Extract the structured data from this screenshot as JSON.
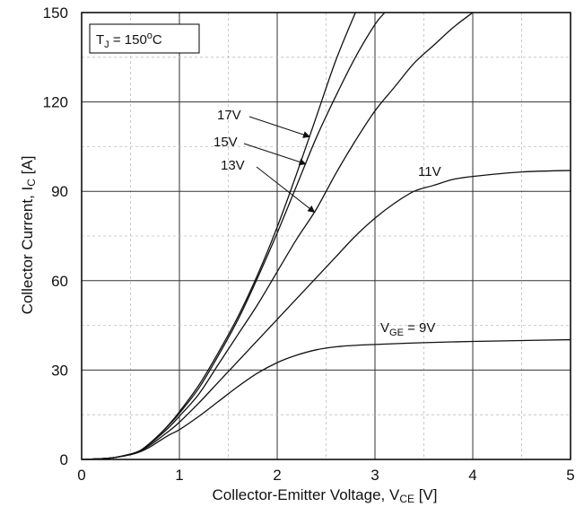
{
  "chart_data": {
    "type": "line",
    "title": "",
    "xlabel": "Collector-Emitter Voltage, V",
    "xlabel_sub": "CE",
    "xlabel_unit": " [V]",
    "ylabel": "Collector Current, I",
    "ylabel_sub": "C",
    "ylabel_unit": " [A]",
    "xlim": [
      0,
      5
    ],
    "ylim": [
      0,
      150
    ],
    "xticks": [
      0,
      1,
      2,
      3,
      4,
      5
    ],
    "yticks": [
      0,
      30,
      60,
      90,
      120,
      150
    ],
    "grid": true,
    "condition": {
      "base": "T",
      "sub": "J",
      "mid": " = 150",
      "sup": "o",
      "unit": "C"
    },
    "series": [
      {
        "name": "17V",
        "points": [
          [
            0,
            0
          ],
          [
            0.3,
            0.5
          ],
          [
            0.5,
            1.8
          ],
          [
            0.6,
            3
          ],
          [
            0.7,
            5.5
          ],
          [
            0.8,
            8.5
          ],
          [
            0.9,
            12
          ],
          [
            1,
            16
          ],
          [
            1.2,
            25
          ],
          [
            1.4,
            36
          ],
          [
            1.6,
            48
          ],
          [
            1.8,
            62
          ],
          [
            2,
            78
          ],
          [
            2.2,
            96
          ],
          [
            2.4,
            115
          ],
          [
            2.6,
            134
          ],
          [
            2.8,
            150
          ]
        ]
      },
      {
        "name": "15V",
        "points": [
          [
            0,
            0
          ],
          [
            0.3,
            0.5
          ],
          [
            0.5,
            1.8
          ],
          [
            0.6,
            3
          ],
          [
            0.7,
            5.5
          ],
          [
            0.8,
            8.5
          ],
          [
            0.9,
            11.8
          ],
          [
            1,
            15.5
          ],
          [
            1.2,
            24
          ],
          [
            1.4,
            35
          ],
          [
            1.6,
            47
          ],
          [
            1.8,
            61
          ],
          [
            2,
            76
          ],
          [
            2.2,
            92
          ],
          [
            2.4,
            108
          ],
          [
            2.6,
            122
          ],
          [
            2.8,
            135
          ],
          [
            3,
            146
          ],
          [
            3.1,
            150
          ]
        ]
      },
      {
        "name": "13V",
        "points": [
          [
            0,
            0
          ],
          [
            0.3,
            0.5
          ],
          [
            0.5,
            1.8
          ],
          [
            0.6,
            3
          ],
          [
            0.7,
            5.3
          ],
          [
            0.8,
            8
          ],
          [
            0.9,
            11
          ],
          [
            1,
            14.5
          ],
          [
            1.2,
            22
          ],
          [
            1.4,
            32
          ],
          [
            1.6,
            42
          ],
          [
            1.8,
            52
          ],
          [
            2,
            63
          ],
          [
            2.2,
            74
          ],
          [
            2.4,
            84
          ],
          [
            2.6,
            96
          ],
          [
            2.8,
            107
          ],
          [
            3,
            117
          ],
          [
            3.2,
            125
          ],
          [
            3.4,
            133
          ],
          [
            3.6,
            139
          ],
          [
            3.8,
            145
          ],
          [
            4,
            150
          ]
        ]
      },
      {
        "name": "11V",
        "points": [
          [
            0,
            0
          ],
          [
            0.3,
            0.5
          ],
          [
            0.5,
            1.7
          ],
          [
            0.6,
            2.8
          ],
          [
            0.7,
            4.8
          ],
          [
            0.8,
            7.2
          ],
          [
            0.9,
            9.7
          ],
          [
            1,
            12.5
          ],
          [
            1.2,
            19
          ],
          [
            1.4,
            26
          ],
          [
            1.6,
            33
          ],
          [
            1.8,
            40
          ],
          [
            2,
            47
          ],
          [
            2.2,
            54
          ],
          [
            2.4,
            61
          ],
          [
            2.6,
            68
          ],
          [
            2.8,
            75
          ],
          [
            3,
            81
          ],
          [
            3.2,
            86
          ],
          [
            3.4,
            90
          ],
          [
            3.6,
            92
          ],
          [
            3.8,
            94
          ],
          [
            4,
            95
          ],
          [
            4.5,
            96.5
          ],
          [
            5,
            97
          ]
        ]
      },
      {
        "name": "V_GE = 9V",
        "label": {
          "base": "V",
          "sub": "GE",
          "rest": " = 9V"
        },
        "points": [
          [
            0,
            0
          ],
          [
            0.3,
            0.5
          ],
          [
            0.5,
            1.6
          ],
          [
            0.6,
            2.6
          ],
          [
            0.7,
            4.2
          ],
          [
            0.8,
            6.3
          ],
          [
            0.9,
            8.3
          ],
          [
            1,
            10
          ],
          [
            1.2,
            14.5
          ],
          [
            1.4,
            19.5
          ],
          [
            1.6,
            24.5
          ],
          [
            1.8,
            29
          ],
          [
            2,
            32.5
          ],
          [
            2.2,
            35
          ],
          [
            2.4,
            36.8
          ],
          [
            2.6,
            37.8
          ],
          [
            2.8,
            38.3
          ],
          [
            3,
            38.6
          ],
          [
            3.5,
            39.2
          ],
          [
            4,
            39.6
          ],
          [
            4.5,
            39.9
          ],
          [
            5,
            40.2
          ]
        ]
      }
    ],
    "annotations": [
      {
        "text": "17V",
        "series": "17V"
      },
      {
        "text": "15V",
        "series": "15V"
      },
      {
        "text": "13V",
        "series": "13V"
      },
      {
        "text": "11V",
        "series": "11V"
      }
    ]
  }
}
